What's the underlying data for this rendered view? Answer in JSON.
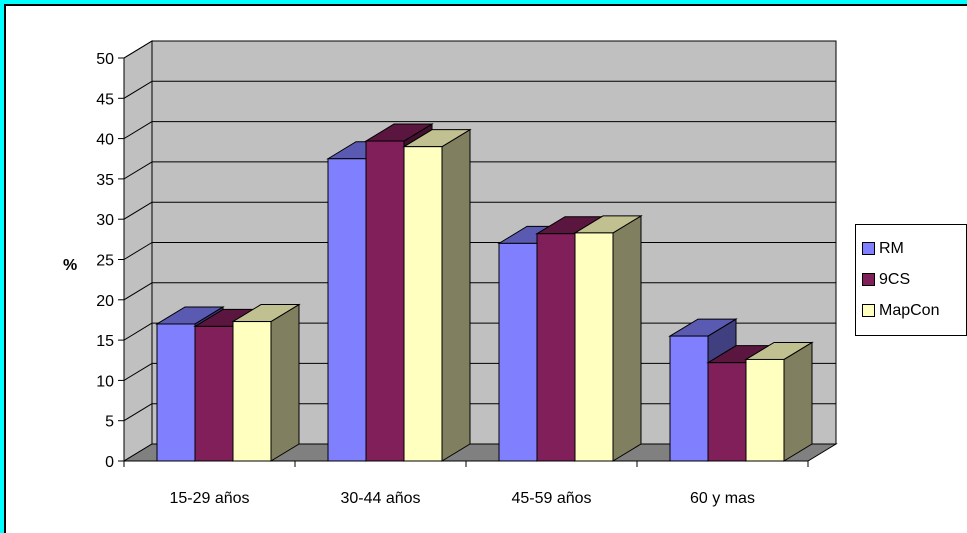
{
  "chart_data": {
    "type": "bar",
    "categories": [
      "15-29 años",
      "30-44 años",
      "45-59 años",
      "60 y mas"
    ],
    "series": [
      {
        "name": "RM",
        "values": [
          17,
          37.5,
          27,
          15.5
        ],
        "color": "#8080ff"
      },
      {
        "name": "9CS",
        "values": [
          16.7,
          39.7,
          28.2,
          12.2
        ],
        "color": "#801f5a"
      },
      {
        "name": "MapCon",
        "values": [
          17.3,
          39,
          28.3,
          12.6
        ],
        "color": "#ffffc0"
      }
    ],
    "ylabel": "%",
    "ylim": [
      0,
      50
    ],
    "yticks": [
      0,
      5,
      10,
      15,
      20,
      25,
      30,
      35,
      40,
      45,
      50
    ],
    "grid": true,
    "legend_position": "right",
    "style": "3d-clustered-column"
  }
}
